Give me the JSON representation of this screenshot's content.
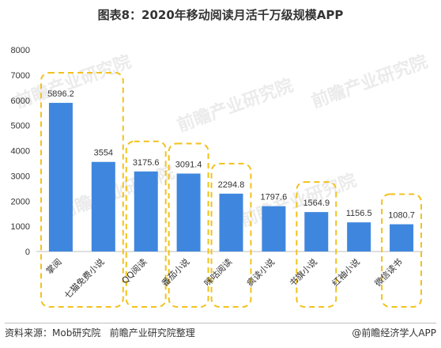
{
  "title": "图表8：2020年移动阅读月活千万级规模APP",
  "footer": {
    "source": "资料来源：Mob研究院   前瞻产业研究院整理",
    "credit": "@前瞻经济学人APP"
  },
  "watermark": "前瞻产业研究院",
  "colors": {
    "bar": "#3f87de",
    "highlight_border": "#f2c21b",
    "axis": "#bfbfbf",
    "text": "#333333"
  },
  "chart_data": {
    "type": "bar",
    "categories": [
      "掌阅",
      "七猫免费小说",
      "QQ阅读",
      "番茄小说",
      "咪咕阅读",
      "疯读小说",
      "书旗小说",
      "红袖小说",
      "微信读书"
    ],
    "values": [
      5896.2,
      3554,
      3175.6,
      3091.4,
      2294.8,
      1797.6,
      1564.9,
      1156.5,
      1080.7
    ],
    "data_labels": [
      "5896.2",
      "3554",
      "3175.6",
      "3091.4",
      "2294.8",
      "1797.6",
      "1564.9",
      "1156.5",
      "1080.7"
    ],
    "ylim": [
      0,
      8000
    ],
    "yticks": [
      0,
      1000,
      2000,
      3000,
      4000,
      5000,
      6000,
      7000,
      8000
    ],
    "grid": false,
    "highlight_groups": [
      [
        0,
        1
      ],
      [
        2
      ],
      [
        3
      ],
      [
        4
      ],
      [
        6
      ],
      [
        8
      ]
    ]
  }
}
